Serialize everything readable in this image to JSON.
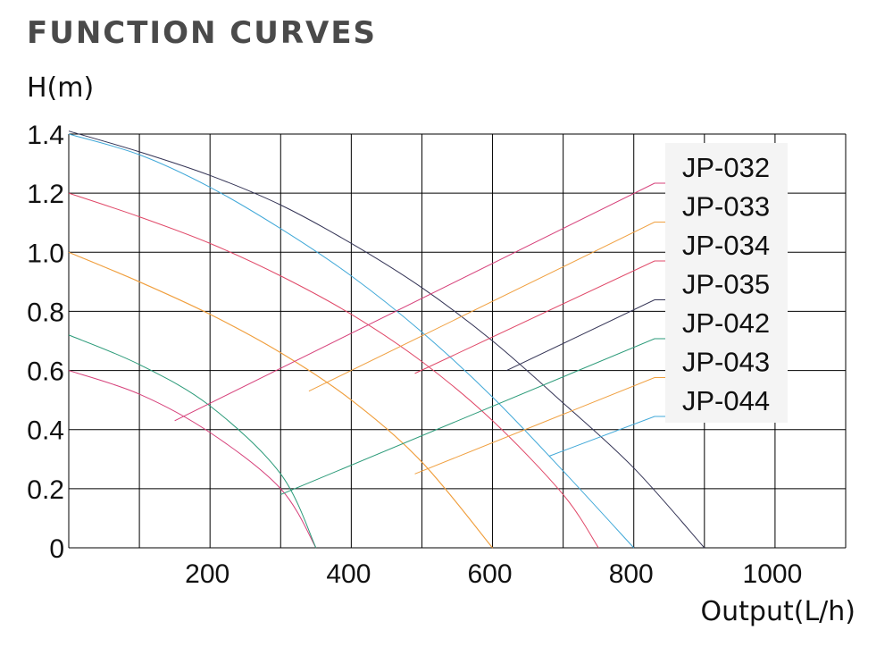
{
  "chart_data": {
    "type": "line",
    "title": "FUNCTION CURVES",
    "ylabel": "H(m)",
    "xlabel": "Output(L/h)",
    "xlim": [
      0,
      1100
    ],
    "ylim": [
      0,
      1.4
    ],
    "x_ticks": [
      {
        "value": 200,
        "label": "200"
      },
      {
        "value": 400,
        "label": "400"
      },
      {
        "value": 600,
        "label": "600"
      },
      {
        "value": 800,
        "label": "800"
      },
      {
        "value": 1000,
        "label": "1000"
      }
    ],
    "y_ticks": [
      {
        "value": 0,
        "label": "0"
      },
      {
        "value": 0.2,
        "label": "0.2"
      },
      {
        "value": 0.4,
        "label": "0.4"
      },
      {
        "value": 0.6,
        "label": "0.6"
      },
      {
        "value": 0.8,
        "label": "0.8"
      },
      {
        "value": 1.0,
        "label": "1.0"
      },
      {
        "value": 1.2,
        "label": "1.2"
      },
      {
        "value": 1.4,
        "label": "1.4"
      }
    ],
    "grid": true,
    "legend_position": "top-right",
    "series": [
      {
        "name": "JP-032",
        "color": "#d6407a",
        "x": [
          0,
          100,
          200,
          300,
          350
        ],
        "y": [
          0.6,
          0.52,
          0.39,
          0.2,
          0
        ],
        "leader": [
          150,
          0.43
        ]
      },
      {
        "name": "JP-033",
        "color": "#f0a040",
        "x": [
          0,
          100,
          200,
          300,
          400,
          500,
          600
        ],
        "y": [
          1.0,
          0.9,
          0.79,
          0.66,
          0.5,
          0.29,
          0
        ],
        "leader": [
          340,
          0.53
        ]
      },
      {
        "name": "JP-034",
        "color": "#e04868",
        "x": [
          0,
          100,
          200,
          300,
          400,
          500,
          600,
          700,
          750
        ],
        "y": [
          1.2,
          1.12,
          1.03,
          0.92,
          0.79,
          0.63,
          0.43,
          0.18,
          0
        ],
        "leader": [
          490,
          0.59
        ]
      },
      {
        "name": "JP-035",
        "color": "#333355",
        "x": [
          0,
          100,
          200,
          300,
          400,
          500,
          600,
          700,
          800,
          900
        ],
        "y": [
          1.41,
          1.34,
          1.26,
          1.16,
          1.03,
          0.88,
          0.7,
          0.49,
          0.27,
          0
        ],
        "leader": [
          620,
          0.6
        ]
      },
      {
        "name": "JP-042",
        "color": "#2a9a78",
        "x": [
          0,
          100,
          200,
          300,
          350
        ],
        "y": [
          0.72,
          0.62,
          0.48,
          0.25,
          0
        ],
        "leader": [
          300,
          0.18
        ]
      },
      {
        "name": "JP-043",
        "color": "#f0a040",
        "x": [
          0,
          100,
          200,
          300,
          400,
          500,
          600
        ],
        "y": [
          1.0,
          0.9,
          0.79,
          0.66,
          0.5,
          0.29,
          0
        ],
        "leader": [
          490,
          0.25
        ]
      },
      {
        "name": "JP-044",
        "color": "#40a8d8",
        "x": [
          0,
          100,
          200,
          300,
          400,
          500,
          600,
          700,
          800
        ],
        "y": [
          1.4,
          1.33,
          1.22,
          1.08,
          0.92,
          0.73,
          0.51,
          0.26,
          0
        ],
        "leader": [
          680,
          0.31
        ]
      }
    ]
  }
}
